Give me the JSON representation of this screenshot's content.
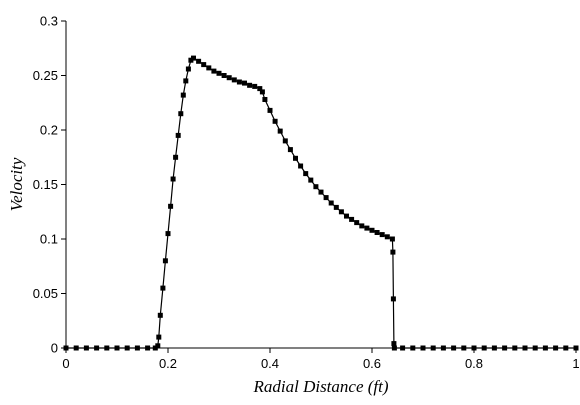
{
  "chart_data": {
    "type": "scatter",
    "title": "",
    "xlabel": "Radial Distance (ft)",
    "ylabel": "Velocity",
    "xlim": [
      0,
      1
    ],
    "ylim": [
      0,
      0.3
    ],
    "xticks": [
      0,
      0.2,
      0.4,
      0.6,
      0.8,
      1
    ],
    "xtick_labels": [
      "0",
      "0.2",
      "0.4",
      "0.6",
      "0.8",
      "1"
    ],
    "yticks": [
      0,
      0.05,
      0.1,
      0.15,
      0.2,
      0.25,
      0.3
    ],
    "ytick_labels": [
      "0",
      "0.05",
      "0.1",
      "0.15",
      "0.2",
      "0.25",
      "0.3"
    ],
    "grid": false,
    "legend": "none",
    "series": [
      {
        "color": "#000000",
        "marker": "square",
        "line": true,
        "points": [
          [
            0,
            0
          ],
          [
            0.02,
            0
          ],
          [
            0.04,
            0
          ],
          [
            0.06,
            0
          ],
          [
            0.08,
            0
          ],
          [
            0.1,
            0
          ],
          [
            0.12,
            0
          ],
          [
            0.14,
            0
          ],
          [
            0.16,
            0
          ],
          [
            0.175,
            0
          ],
          [
            0.18,
            0.002
          ],
          [
            0.182,
            0.01
          ],
          [
            0.185,
            0.03
          ],
          [
            0.19,
            0.055
          ],
          [
            0.195,
            0.08
          ],
          [
            0.2,
            0.105
          ],
          [
            0.205,
            0.13
          ],
          [
            0.21,
            0.155
          ],
          [
            0.215,
            0.175
          ],
          [
            0.22,
            0.195
          ],
          [
            0.225,
            0.215
          ],
          [
            0.23,
            0.232
          ],
          [
            0.235,
            0.245
          ],
          [
            0.24,
            0.256
          ],
          [
            0.245,
            0.264
          ],
          [
            0.25,
            0.266
          ],
          [
            0.26,
            0.263
          ],
          [
            0.27,
            0.26
          ],
          [
            0.28,
            0.257
          ],
          [
            0.29,
            0.254
          ],
          [
            0.3,
            0.252
          ],
          [
            0.31,
            0.25
          ],
          [
            0.32,
            0.248
          ],
          [
            0.33,
            0.246
          ],
          [
            0.34,
            0.244
          ],
          [
            0.35,
            0.243
          ],
          [
            0.36,
            0.241
          ],
          [
            0.37,
            0.24
          ],
          [
            0.38,
            0.238
          ],
          [
            0.385,
            0.235
          ],
          [
            0.39,
            0.228
          ],
          [
            0.4,
            0.218
          ],
          [
            0.41,
            0.208
          ],
          [
            0.42,
            0.199
          ],
          [
            0.43,
            0.19
          ],
          [
            0.44,
            0.182
          ],
          [
            0.45,
            0.174
          ],
          [
            0.46,
            0.167
          ],
          [
            0.47,
            0.16
          ],
          [
            0.48,
            0.154
          ],
          [
            0.49,
            0.148
          ],
          [
            0.5,
            0.143
          ],
          [
            0.51,
            0.138
          ],
          [
            0.52,
            0.133
          ],
          [
            0.53,
            0.129
          ],
          [
            0.54,
            0.125
          ],
          [
            0.55,
            0.121
          ],
          [
            0.56,
            0.118
          ],
          [
            0.57,
            0.115
          ],
          [
            0.58,
            0.112
          ],
          [
            0.59,
            0.11
          ],
          [
            0.6,
            0.108
          ],
          [
            0.61,
            0.106
          ],
          [
            0.62,
            0.104
          ],
          [
            0.63,
            0.102
          ],
          [
            0.64,
            0.1
          ],
          [
            0.641,
            0.088
          ],
          [
            0.642,
            0.045
          ],
          [
            0.643,
            0.004
          ],
          [
            0.644,
            0
          ],
          [
            0.66,
            0
          ],
          [
            0.68,
            0
          ],
          [
            0.7,
            0
          ],
          [
            0.72,
            0
          ],
          [
            0.74,
            0
          ],
          [
            0.76,
            0
          ],
          [
            0.78,
            0
          ],
          [
            0.8,
            0
          ],
          [
            0.82,
            0
          ],
          [
            0.84,
            0
          ],
          [
            0.86,
            0
          ],
          [
            0.88,
            0
          ],
          [
            0.9,
            0
          ],
          [
            0.92,
            0
          ],
          [
            0.94,
            0
          ],
          [
            0.96,
            0
          ],
          [
            0.98,
            0
          ],
          [
            1,
            0
          ]
        ]
      }
    ]
  }
}
